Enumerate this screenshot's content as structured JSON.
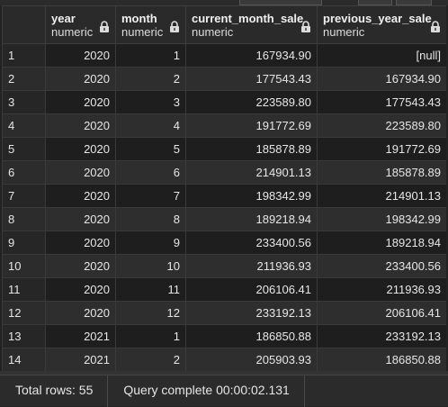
{
  "grid": {
    "columns": [
      {
        "key": "rownum",
        "name": "",
        "type": ""
      },
      {
        "key": "year",
        "name": "year",
        "type": "numeric"
      },
      {
        "key": "month",
        "name": "month",
        "type": "numeric"
      },
      {
        "key": "current_month_sale",
        "name": "current_month_sale",
        "type": "numeric"
      },
      {
        "key": "previous_year_sale",
        "name": "previous_year_sale",
        "type": "numeric"
      }
    ],
    "rows": [
      [
        "1",
        "2020",
        "1",
        "167934.90",
        "[null]"
      ],
      [
        "2",
        "2020",
        "2",
        "177543.43",
        "167934.90"
      ],
      [
        "3",
        "2020",
        "3",
        "223589.80",
        "177543.43"
      ],
      [
        "4",
        "2020",
        "4",
        "191772.69",
        "223589.80"
      ],
      [
        "5",
        "2020",
        "5",
        "185878.89",
        "191772.69"
      ],
      [
        "6",
        "2020",
        "6",
        "214901.13",
        "185878.89"
      ],
      [
        "7",
        "2020",
        "7",
        "198342.99",
        "214901.13"
      ],
      [
        "8",
        "2020",
        "8",
        "189218.94",
        "198342.99"
      ],
      [
        "9",
        "2020",
        "9",
        "233400.56",
        "189218.94"
      ],
      [
        "10",
        "2020",
        "10",
        "211936.93",
        "233400.56"
      ],
      [
        "11",
        "2020",
        "11",
        "206106.41",
        "211936.93"
      ],
      [
        "12",
        "2020",
        "12",
        "233192.13",
        "206106.41"
      ],
      [
        "13",
        "2021",
        "1",
        "186850.88",
        "233192.13"
      ],
      [
        "14",
        "2021",
        "2",
        "205903.93",
        "186850.88"
      ]
    ]
  },
  "status": {
    "total_rows": "Total rows: 55",
    "query_status": "Query complete 00:00:02.131"
  },
  "icons": {
    "column_lock": "lock-icon"
  },
  "colors": {
    "background": "#1e1e1e",
    "header": "#2a2a2a",
    "row_alt": "#2e2e2e",
    "text": "#e6e6e6"
  }
}
